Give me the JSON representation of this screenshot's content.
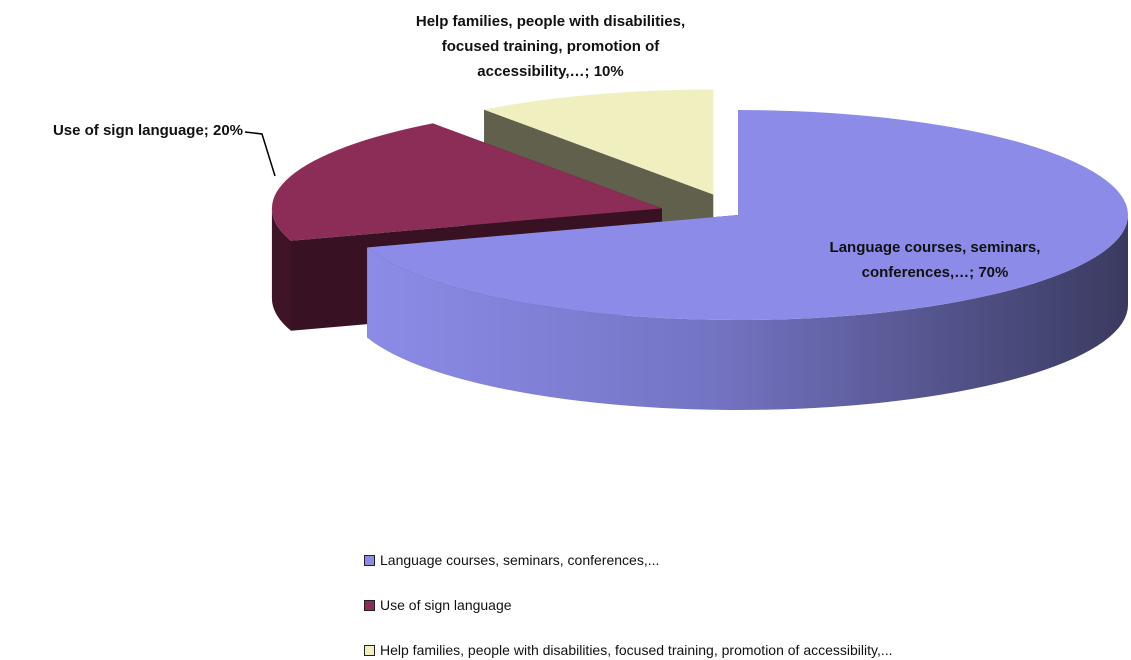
{
  "chart_data": {
    "type": "pie",
    "categories": [
      "Language courses, seminars, conferences,...",
      "Use of sign language",
      "Help families, people with disabilities, focused training, promotion of accessibility,..."
    ],
    "values": [
      70,
      20,
      10
    ],
    "value_labels": [
      "Language courses, seminars, conferences,…; 70%",
      "Use of sign language; 20%",
      "Help families, people with disabilities, focused training, promotion of accessibility,…; 10%"
    ],
    "colors": [
      "#8c8ce8",
      "#8b2d57",
      "#efefc0"
    ],
    "legend": "bottom"
  }
}
